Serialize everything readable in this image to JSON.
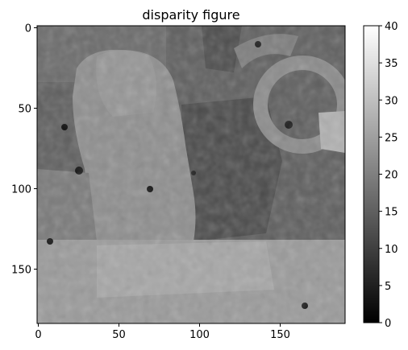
{
  "chart_data": {
    "type": "heatmap",
    "title": "disparity figure",
    "xlabel": "",
    "ylabel": "",
    "x_range": [
      0,
      190
    ],
    "y_range": [
      0,
      185
    ],
    "y_inverted": true,
    "x_ticks": [
      "0",
      "50",
      "100",
      "150"
    ],
    "y_ticks": [
      "0",
      "50",
      "100",
      "150"
    ],
    "colormap": "gray",
    "colorbar": {
      "range": [
        0,
        40
      ],
      "ticks": [
        "0",
        "5",
        "10",
        "15",
        "20",
        "25",
        "30",
        "35",
        "40"
      ]
    },
    "grid": false,
    "regions": [
      {
        "name": "background",
        "value": 16
      },
      {
        "name": "central-statue",
        "value": 22
      },
      {
        "name": "lower-band",
        "value": 24
      },
      {
        "name": "right-ring",
        "value": 21
      },
      {
        "name": "right-bright-patch",
        "value": 27
      },
      {
        "name": "middle-dark-area",
        "value": 13
      },
      {
        "name": "top-right-dark",
        "value": 11
      },
      {
        "name": "left-lower-noise",
        "value": 19
      }
    ]
  }
}
